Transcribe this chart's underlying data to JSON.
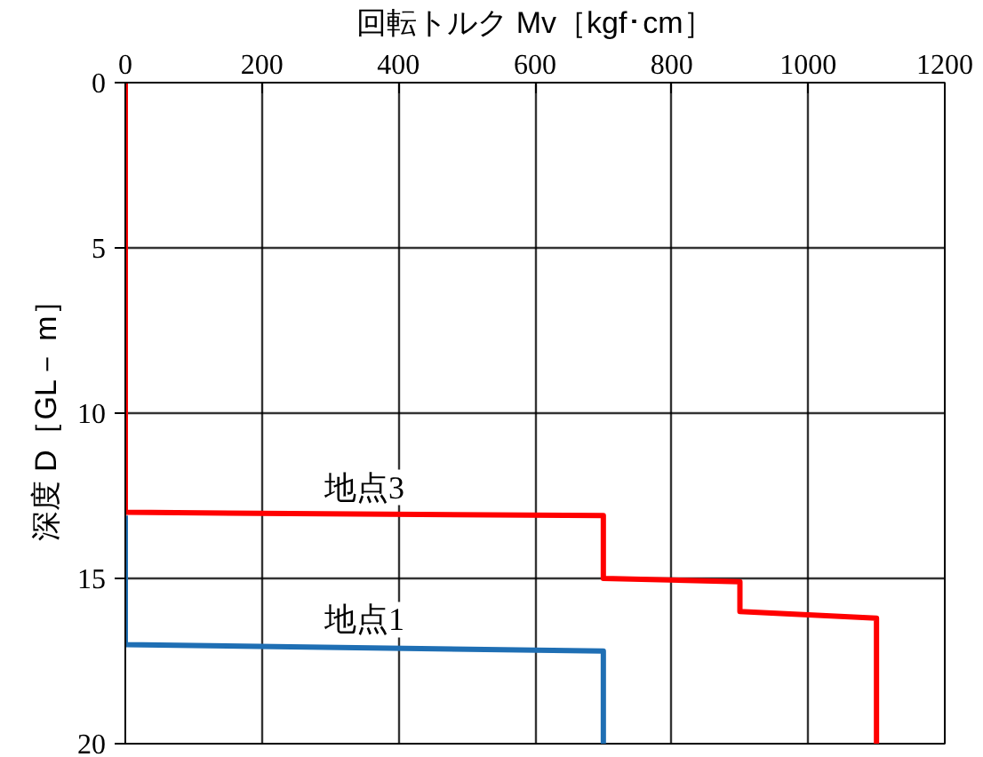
{
  "chart_data": {
    "type": "line",
    "xlabel": "回転トルク Mv［kgf･cm］",
    "ylabel": "深度 D［GL－ m］",
    "xlim": [
      0,
      1200
    ],
    "xticks": [
      0,
      200,
      400,
      600,
      800,
      1000,
      1200
    ],
    "ylim": [
      20,
      0
    ],
    "yticks": [
      0,
      5,
      10,
      15,
      20
    ],
    "grid": true,
    "legend": false,
    "marker": "none",
    "line_style": "solid",
    "series": [
      {
        "name": "地点3",
        "color": "#ff0000",
        "x": [
          0,
          0,
          700,
          700,
          900,
          900,
          1100,
          1100
        ],
        "values": [
          0,
          13,
          13.1,
          15,
          15.1,
          16,
          16.2,
          20
        ]
      },
      {
        "name": "地点1",
        "color": "#1f6fb4",
        "x": [
          0,
          0,
          700,
          700
        ],
        "values": [
          13.1,
          17,
          17.2,
          20
        ]
      }
    ]
  }
}
